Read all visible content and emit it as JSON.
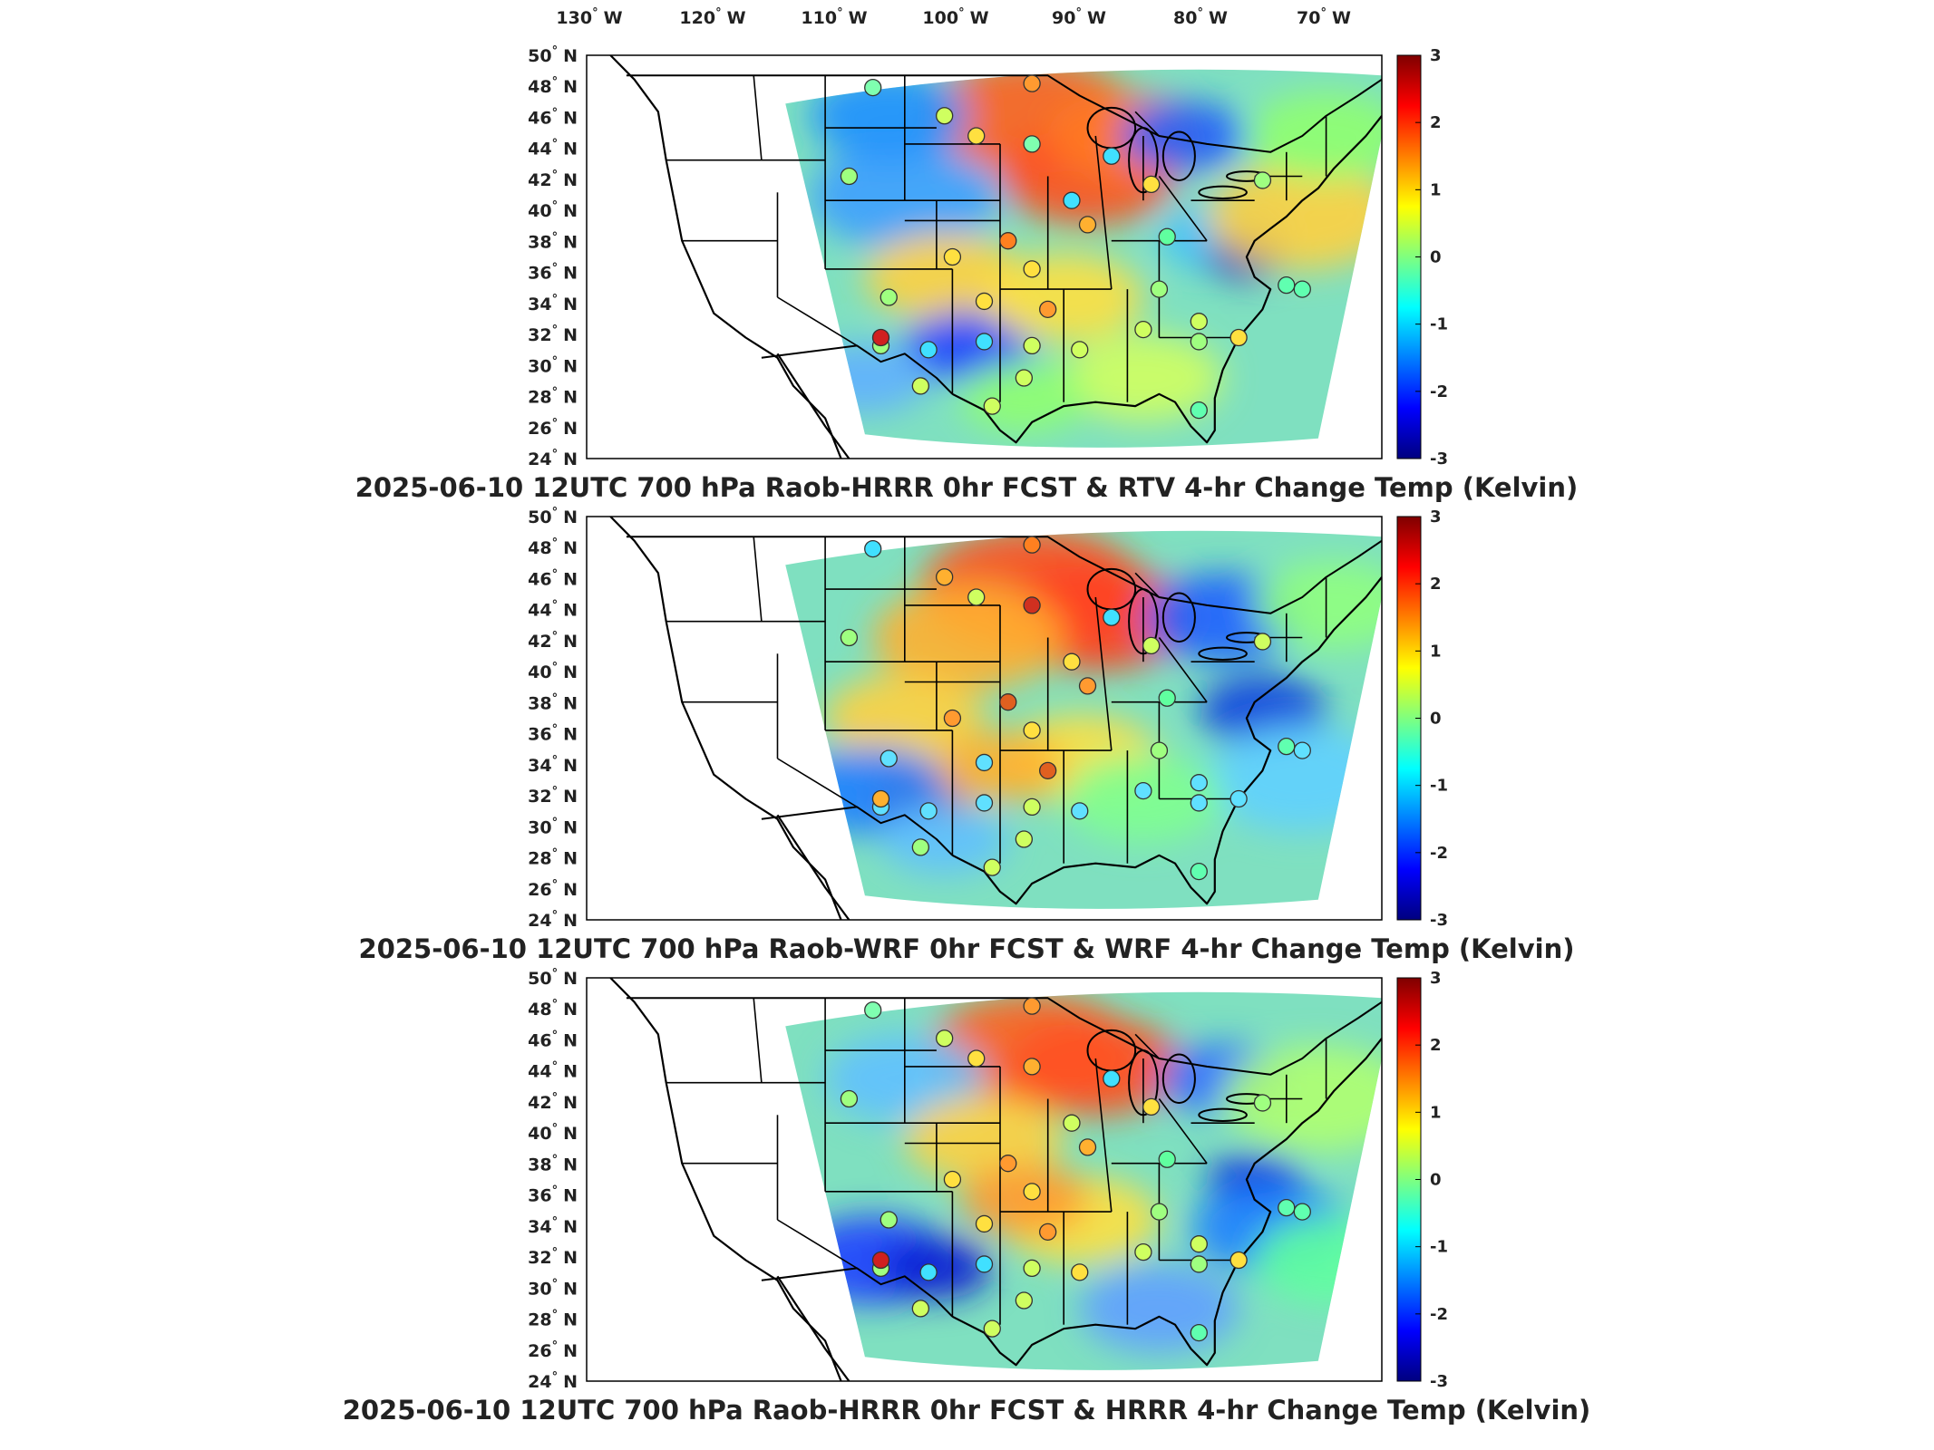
{
  "top_lon_labels": [
    {
      "deg": "130",
      "dir": "W"
    },
    {
      "deg": "120",
      "dir": "W"
    },
    {
      "deg": "110",
      "dir": "W"
    },
    {
      "deg": "100",
      "dir": "W"
    },
    {
      "deg": "90",
      "dir": "W"
    },
    {
      "deg": "80",
      "dir": "W"
    },
    {
      "deg": "70",
      "dir": "W"
    }
  ],
  "lat_labels": [
    "50",
    "48",
    "46",
    "44",
    "42",
    "40",
    "38",
    "36",
    "34",
    "32",
    "30",
    "28",
    "26",
    "24"
  ],
  "lat_dir": "N",
  "colorbar_ticks": [
    "3",
    "2",
    "1",
    "0",
    "-1",
    "-2",
    "-3"
  ],
  "colorbar_range": [
    -3,
    3
  ],
  "colorbar_colors": [
    "#00007f",
    "#0000ff",
    "#007fff",
    "#00ffff",
    "#7fff7f",
    "#ffff00",
    "#ff7f00",
    "#ff0000",
    "#7f0000"
  ],
  "panels": [
    {
      "title": "2025-06-10 12UTC 700 hPa Raob-HRRR 0hr FCST & RTV 4-hr Change Temp (Kelvin)"
    },
    {
      "title": "2025-06-10 12UTC 700 hPa Raob-WRF 0hr FCST & WRF 4-hr Change Temp (Kelvin)"
    },
    {
      "title": "2025-06-10 12UTC 700 hPa Raob-HRRR 0hr FCST & HRRR 4-hr Change Temp (Kelvin)"
    }
  ]
}
